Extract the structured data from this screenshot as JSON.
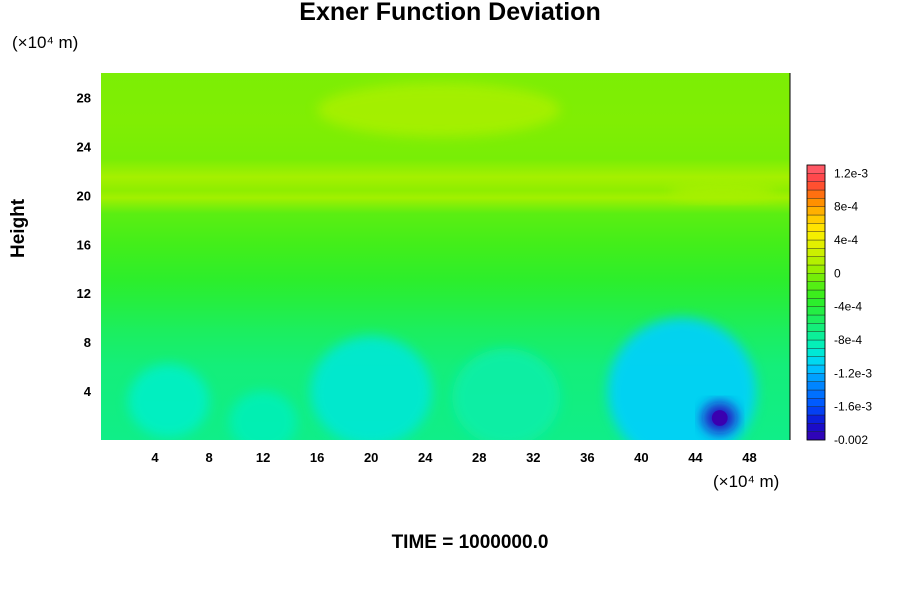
{
  "chart_data": {
    "type": "heatmap",
    "title": "Exner Function Deviation",
    "ylabel": "Height",
    "xunit_label": "(×10⁴ m)",
    "yunit_label": "(×10⁴ m)",
    "footer": "TIME = 1000000.0",
    "xlim": [
      0,
      51
    ],
    "ylim": [
      0,
      30
    ],
    "x_ticks": [
      4,
      8,
      12,
      16,
      20,
      24,
      28,
      32,
      36,
      40,
      44,
      48
    ],
    "y_ticks": [
      4,
      8,
      12,
      16,
      20,
      24,
      28
    ],
    "x_tick_labels": [
      "4",
      "8",
      "12",
      "16",
      "20",
      "24",
      "28",
      "32",
      "36",
      "40",
      "44",
      "48"
    ],
    "y_tick_labels": [
      "4",
      "8",
      "12",
      "16",
      "20",
      "24",
      "28"
    ],
    "colorbar": {
      "min": -0.002,
      "max": 0.0013,
      "labels": [
        "1.2e-3",
        "8e-4",
        "4e-4",
        "0",
        "-4e-4",
        "-8e-4",
        "-1.2e-3",
        "-1.6e-3",
        "-0.002"
      ],
      "label_values": [
        0.0012,
        0.0008,
        0.0004,
        0,
        -0.0004,
        -0.0008,
        -0.0012,
        -0.0016,
        -0.002
      ]
    },
    "field": {
      "background": [
        {
          "y": 0,
          "value": -0.0007
        },
        {
          "y": 6,
          "value": -0.00065
        },
        {
          "y": 9,
          "value": -0.00055
        },
        {
          "y": 11,
          "value": -0.00045
        },
        {
          "y": 13,
          "value": -0.00035
        },
        {
          "y": 16,
          "value": -0.00022
        },
        {
          "y": 18.5,
          "value": -0.00012
        },
        {
          "y": 19.8,
          "value": 8e-05
        },
        {
          "y": 20.4,
          "value": 2e-05
        },
        {
          "y": 21.5,
          "value": 9e-05
        },
        {
          "y": 23,
          "value": -4e-05
        },
        {
          "y": 26,
          "value": -2e-05
        },
        {
          "y": 30,
          "value": -3e-05
        }
      ],
      "anomalies": [
        {
          "x": 5,
          "y": 3.2,
          "value": -0.0009,
          "rx": 3,
          "ry": 3
        },
        {
          "x": 12,
          "y": 1.5,
          "value": -0.00085,
          "rx": 2.5,
          "ry": 2.5
        },
        {
          "x": 20,
          "y": 4,
          "value": -0.00095,
          "rx": 4.5,
          "ry": 4.5
        },
        {
          "x": 30,
          "y": 3.5,
          "value": -0.0008,
          "rx": 4,
          "ry": 4
        },
        {
          "x": 43,
          "y": 4,
          "value": -0.0011,
          "rx": 5.5,
          "ry": 6
        },
        {
          "x": 45.8,
          "y": 1.8,
          "value": -0.0019,
          "rx": 1.3,
          "ry": 1.3
        },
        {
          "x": 25,
          "y": 27,
          "value": 0.0001,
          "rx": 9,
          "ry": 2.2
        },
        {
          "x": 46,
          "y": 20.3,
          "value": 0.0001,
          "rx": 4,
          "ry": 0.8
        }
      ]
    }
  }
}
